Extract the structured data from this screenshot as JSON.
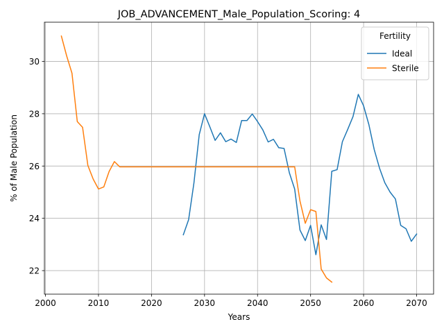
{
  "chart_data": {
    "type": "line",
    "title": "JOB_ADVANCEMENT_Male_Population_Scoring: 4",
    "xlabel": "Years",
    "ylabel": "% of Male Population",
    "xlim": [
      1999.8,
      2073.2
    ],
    "ylim": [
      21.1,
      31.5
    ],
    "xticks": [
      2000,
      2010,
      2020,
      2030,
      2040,
      2050,
      2060,
      2070
    ],
    "yticks": [
      22,
      24,
      26,
      28,
      30
    ],
    "grid": true,
    "legend": {
      "title": "Fertility",
      "placement": "top-right"
    },
    "series": [
      {
        "name": "Ideal",
        "color": "#1f77b4",
        "x": [
          2026,
          2027,
          2028,
          2029,
          2030,
          2031,
          2032,
          2033,
          2034,
          2035,
          2036,
          2037,
          2038,
          2039,
          2040,
          2041,
          2042,
          2043,
          2044,
          2045,
          2046,
          2047,
          2048,
          2049,
          2050,
          2051,
          2052,
          2053,
          2054,
          2055,
          2056,
          2057,
          2058,
          2059,
          2060,
          2061,
          2062,
          2063,
          2064,
          2065,
          2066,
          2067,
          2068,
          2069,
          2070
        ],
        "y": [
          23.37,
          23.95,
          25.35,
          27.2,
          28.0,
          27.5,
          26.98,
          27.27,
          26.93,
          27.03,
          26.9,
          27.74,
          27.74,
          27.99,
          27.7,
          27.38,
          26.92,
          27.02,
          26.7,
          26.67,
          25.74,
          25.12,
          23.55,
          23.15,
          23.73,
          22.61,
          23.75,
          23.19,
          25.8,
          25.86,
          26.93,
          27.4,
          27.89,
          28.74,
          28.3,
          27.58,
          26.63,
          25.92,
          25.36,
          25.0,
          24.74,
          23.73,
          23.6,
          23.12,
          23.4
        ]
      },
      {
        "name": "Sterile",
        "color": "#ff7f0e",
        "x": [
          2003,
          2004,
          2005,
          2006,
          2007,
          2008,
          2009,
          2010,
          2011,
          2012,
          2013,
          2014,
          2015,
          2020,
          2025,
          2030,
          2035,
          2040,
          2045,
          2047,
          2048,
          2049,
          2050,
          2051,
          2052,
          2053,
          2054
        ],
        "y": [
          30.97,
          30.21,
          29.55,
          27.7,
          27.48,
          26.02,
          25.5,
          25.12,
          25.2,
          25.79,
          26.17,
          25.97,
          25.97,
          25.97,
          25.97,
          25.97,
          25.97,
          25.97,
          25.97,
          25.97,
          24.66,
          23.81,
          24.33,
          24.26,
          22.06,
          21.72,
          21.56
        ]
      }
    ]
  }
}
